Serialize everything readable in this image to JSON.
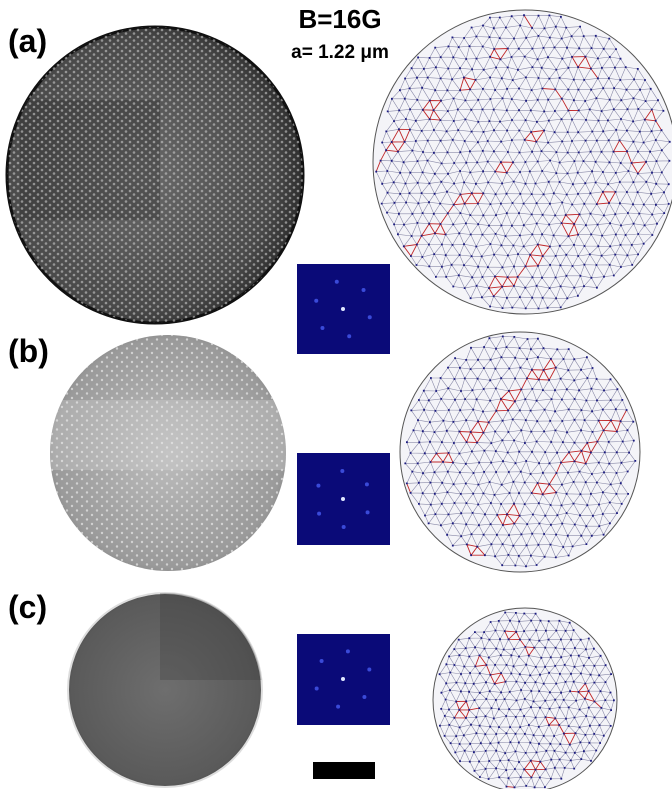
{
  "header": {
    "title": "B=16G",
    "subtitle": "a= 1.22 μm"
  },
  "panels": [
    {
      "label": "(a)"
    },
    {
      "label": "(b)"
    },
    {
      "label": "(c)"
    }
  ]
}
